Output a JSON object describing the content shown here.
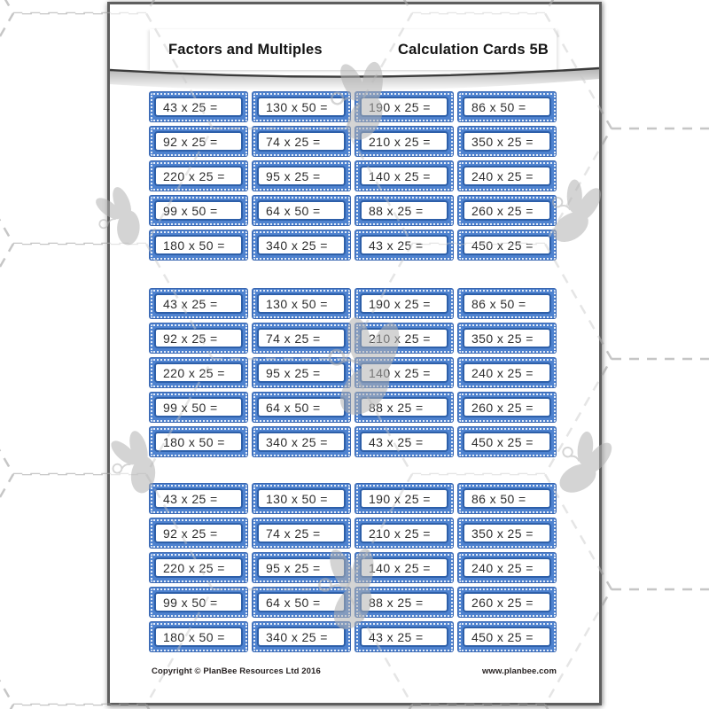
{
  "header": {
    "title_left": "Factors and Multiples",
    "title_right": "Calculation Cards 5B"
  },
  "footer": {
    "copyright": "Copyright © PlanBee Resources Ltd 2016",
    "website": "www.planbee.com"
  },
  "cards": {
    "grid_count": 3,
    "columns": 4,
    "rows": [
      [
        "43 x 25 =",
        "130 x 50 =",
        "190 x 25 =",
        "86 x 50 ="
      ],
      [
        "92 x 25 =",
        "74 x 25 =",
        "210 x 25 =",
        "350 x 25 ="
      ],
      [
        "220 x 25 =",
        "95 x 25 =",
        "140 x 25 =",
        "240 x 25 ="
      ],
      [
        "99 x 50 =",
        "64 x 50 =",
        "88 x 25 =",
        "260 x 25 ="
      ],
      [
        "180 x 50 =",
        "340 x 25 =",
        "43 x 25 =",
        "450 x 25 ="
      ]
    ]
  },
  "decor": {
    "watermark": "grey-bee",
    "bee_count": 7,
    "background": "dashed-hexagon-pattern"
  },
  "colors": {
    "card_blue": "#4e82cf",
    "card_inner_border": "#2d5fa9",
    "hexagon_line": "#c6c6c6",
    "bee_grey": "#b1b1b1",
    "swoosh_line": "#3b3b3b"
  }
}
